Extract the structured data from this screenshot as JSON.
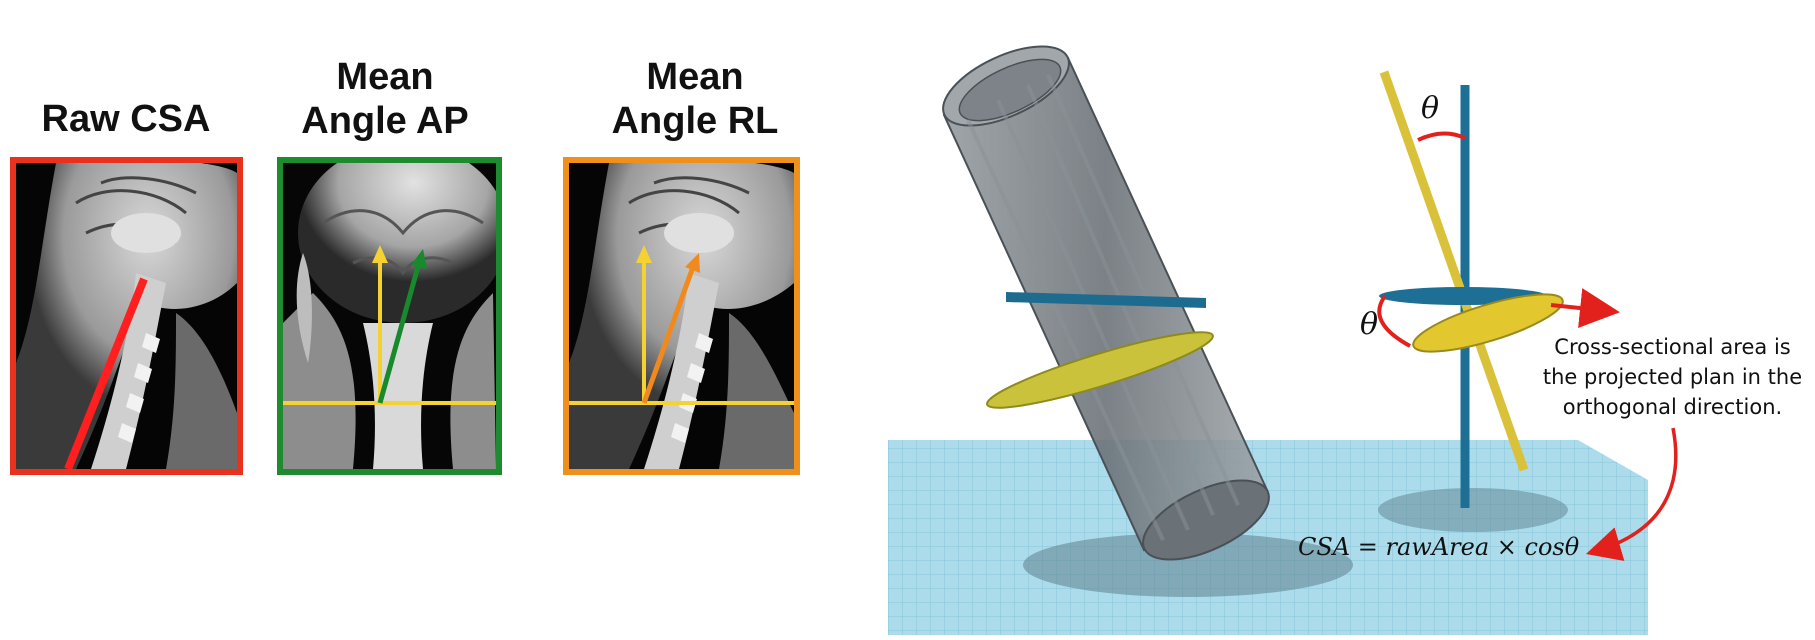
{
  "panels": [
    {
      "title_line1": "",
      "title_line2": "Raw CSA",
      "border_color": "#e8321e"
    },
    {
      "title_line1": "Mean",
      "title_line2": "Angle AP",
      "border_color": "#1f8b2f"
    },
    {
      "title_line1": "Mean",
      "title_line2": "Angle RL",
      "border_color": "#ef8f1c"
    }
  ],
  "colors": {
    "red_line": "#ff1f1f",
    "yellow_line": "#f5d132",
    "green_arrow": "#178a2c",
    "orange_arrow": "#f08a1e",
    "rod_blue": "#1e6f96",
    "rod_yellow": "#d9c23a",
    "grid_floor": "#a9dbea"
  },
  "scene": {
    "theta_symbol": "θ",
    "explanation": "Cross-sectional area is the projected plan in the orthogonal direction.",
    "explanation_line1": "Cross-sectional area is",
    "explanation_line2": "the projected plan in the",
    "explanation_line3": "orthogonal direction.",
    "formula": "CSA = rawArea × cosθ"
  }
}
